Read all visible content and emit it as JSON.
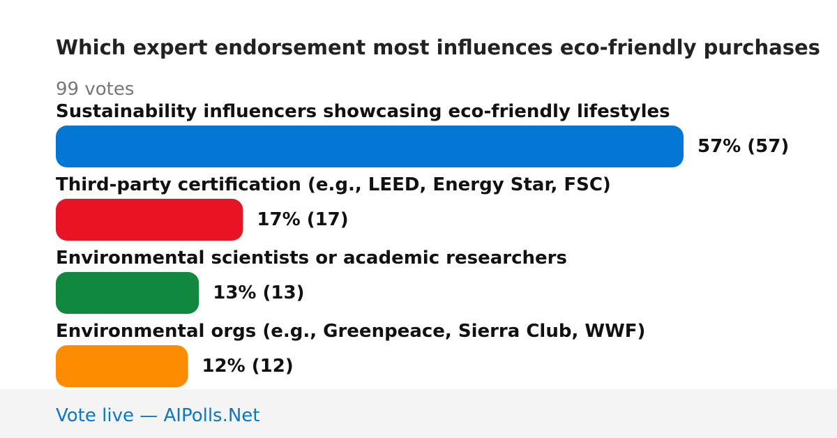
{
  "chart_data": {
    "type": "bar",
    "orientation": "horizontal",
    "title": "Which expert endorsement most influences eco-friendly purchases",
    "subtitle": "99 votes",
    "categories": [
      "Sustainability influencers showcasing eco-friendly lifestyles",
      "Third-party certification (e.g., LEED, Energy Star, FSC)",
      "Environmental scientists or academic researchers",
      "Environmental orgs (e.g., Greenpeace, Sierra Club, WWF)"
    ],
    "values": [
      57,
      17,
      13,
      12
    ],
    "value_labels": [
      "57% (57)",
      "17% (17)",
      "13% (13)",
      "12% (12)"
    ],
    "colors": [
      "#0477d4",
      "#e81324",
      "#12883e",
      "#ff8c00"
    ],
    "footer": "Vote live — AIPolls.Net"
  }
}
